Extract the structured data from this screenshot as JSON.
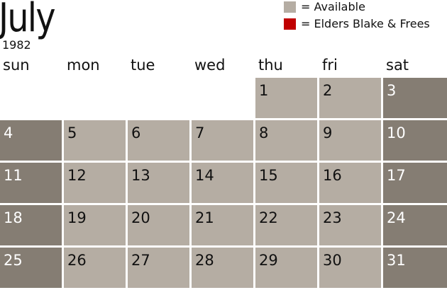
{
  "title": "July",
  "year": "1982",
  "legend": [
    {
      "label": "= Available",
      "color": "#b5ada3"
    },
    {
      "label": "= Elders Blake & Frees",
      "color": "#c00000"
    }
  ],
  "weekdays": [
    "sun",
    "mon",
    "tue",
    "wed",
    "thu",
    "fri",
    "sat"
  ],
  "first_weekday_index": 4,
  "days_in_month": 31,
  "colors": {
    "weekday": "#b5ada3",
    "weekend": "#857d73"
  }
}
